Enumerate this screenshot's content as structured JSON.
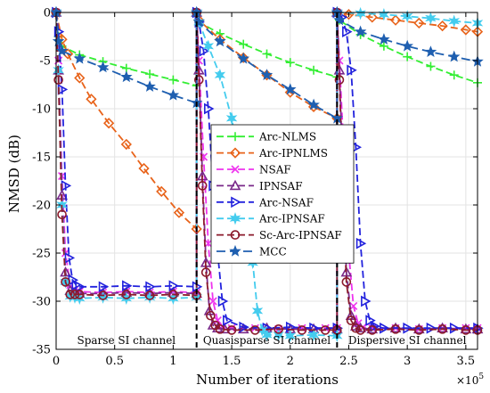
{
  "chart_data": {
    "type": "line",
    "xlabel": "Number of iterations",
    "ylabel": "NMSD (dB)",
    "x_multiplier": "×10",
    "x_multiplier_exponent": "5",
    "xlim": [
      0,
      3.6
    ],
    "ylim": [
      -35,
      0
    ],
    "xticks": [
      0,
      0.5,
      1,
      1.5,
      2,
      2.5,
      3,
      3.5
    ],
    "xtick_labels": [
      "0",
      "0.5",
      "1",
      "1.5",
      "2",
      "2.5",
      "3",
      "3.5"
    ],
    "yticks": [
      0,
      -5,
      -10,
      -15,
      -20,
      -25,
      -30,
      -35
    ],
    "ytick_labels": [
      "0",
      "-5",
      "-10",
      "-15",
      "-20",
      "-25",
      "-30",
      "-35"
    ],
    "grid": true,
    "legend_position": "center-right",
    "change_points": [
      1.2,
      2.4
    ],
    "regions": [
      {
        "label": "Sparse SI channel",
        "x": 0.6
      },
      {
        "label": "Quasisparse SI channel",
        "x": 1.8
      },
      {
        "label": "Dispersive  SI channel",
        "x": 3.0
      }
    ],
    "series": [
      {
        "name": "Arc-NLMS",
        "color": "#33ee33",
        "marker": "plus",
        "dash": "8,4",
        "x": [
          0,
          0.02,
          0.05,
          0.2,
          0.4,
          0.6,
          0.8,
          1.0,
          1.2,
          1.2,
          1.22,
          1.4,
          1.6,
          1.8,
          2.0,
          2.2,
          2.4,
          2.4,
          2.42,
          2.6,
          2.8,
          3.0,
          3.2,
          3.4,
          3.6
        ],
        "y": [
          0,
          -2.5,
          -3.5,
          -4.4,
          -5.1,
          -5.8,
          -6.4,
          -7.0,
          -7.6,
          0,
          -1.0,
          -2.2,
          -3.3,
          -4.3,
          -5.2,
          -6.0,
          -6.7,
          0,
          -0.8,
          -2.3,
          -3.5,
          -4.6,
          -5.6,
          -6.5,
          -7.3
        ]
      },
      {
        "name": "Arc-IPNLMS",
        "color": "#e8631a",
        "marker": "diamond",
        "dash": "8,4",
        "x": [
          0,
          0.05,
          0.1,
          0.2,
          0.3,
          0.45,
          0.6,
          0.75,
          0.9,
          1.05,
          1.2,
          1.2,
          1.22,
          1.4,
          1.6,
          1.8,
          2.0,
          2.2,
          2.4,
          2.4,
          2.5,
          2.7,
          2.9,
          3.1,
          3.3,
          3.5,
          3.6
        ],
        "y": [
          0,
          -2.8,
          -4.3,
          -6.8,
          -9.0,
          -11.5,
          -13.7,
          -16.2,
          -18.6,
          -20.8,
          -22.5,
          0,
          -0.8,
          -2.8,
          -4.7,
          -6.5,
          -8.3,
          -9.8,
          -11.0,
          0,
          -0.2,
          -0.5,
          -0.8,
          -1.1,
          -1.4,
          -1.8,
          -2.0
        ]
      },
      {
        "name": "NSAF",
        "color": "#ee33ee",
        "marker": "x",
        "dash": "8,4",
        "x": [
          0,
          0.02,
          0.05,
          0.08,
          0.12,
          0.16,
          0.2,
          0.4,
          0.6,
          0.8,
          1.0,
          1.2,
          1.2,
          1.22,
          1.26,
          1.3,
          1.34,
          1.38,
          1.42,
          1.5,
          1.7,
          1.9,
          2.1,
          2.3,
          2.4,
          2.4,
          2.42,
          2.46,
          2.5,
          2.54,
          2.58,
          2.62,
          2.7,
          2.9,
          3.1,
          3.3,
          3.5,
          3.6
        ],
        "y": [
          0,
          -5.0,
          -17.0,
          -25.0,
          -28.3,
          -28.8,
          -29.0,
          -29.1,
          -29.0,
          -29.1,
          -29.0,
          -29.1,
          0,
          -5.0,
          -15.0,
          -24.0,
          -30.0,
          -32.0,
          -32.6,
          -32.8,
          -32.8,
          -32.9,
          -32.8,
          -32.8,
          -32.8,
          0,
          -5.0,
          -15.0,
          -25.0,
          -30.5,
          -32.3,
          -32.7,
          -32.8,
          -32.8,
          -32.9,
          -32.8,
          -32.8,
          -32.8
        ]
      },
      {
        "name": "IPNSAF",
        "color": "#7a2a8a",
        "marker": "triangle",
        "dash": "8,4",
        "x": [
          0,
          0.02,
          0.05,
          0.08,
          0.12,
          0.16,
          0.2,
          0.4,
          0.6,
          0.8,
          1.0,
          1.2,
          1.2,
          1.22,
          1.25,
          1.28,
          1.31,
          1.34,
          1.38,
          1.44,
          1.6,
          1.8,
          2.0,
          2.2,
          2.4,
          2.4,
          2.42,
          2.45,
          2.48,
          2.52,
          2.56,
          2.6,
          2.7,
          2.9,
          3.1,
          3.3,
          3.5,
          3.6
        ],
        "y": [
          0,
          -6.0,
          -19.0,
          -27.0,
          -28.9,
          -29.1,
          -29.2,
          -29.2,
          -29.1,
          -29.2,
          -29.1,
          -29.2,
          0,
          -6.0,
          -17.0,
          -26.0,
          -31.0,
          -32.5,
          -32.8,
          -32.9,
          -32.9,
          -32.8,
          -32.9,
          -32.9,
          -32.9,
          0,
          -6.0,
          -17.0,
          -27.0,
          -31.5,
          -32.6,
          -32.8,
          -32.9,
          -32.8,
          -32.9,
          -32.8,
          -32.9,
          -32.9
        ]
      },
      {
        "name": "Arc-NSAF",
        "color": "#2222dd",
        "marker": "triangle-right",
        "dash": "8,4",
        "x": [
          0,
          0.02,
          0.05,
          0.08,
          0.11,
          0.14,
          0.17,
          0.2,
          0.4,
          0.6,
          0.8,
          1.0,
          1.2,
          1.2,
          1.22,
          1.26,
          1.3,
          1.34,
          1.38,
          1.42,
          1.46,
          1.6,
          1.8,
          2.0,
          2.2,
          2.4,
          2.4,
          2.44,
          2.48,
          2.52,
          2.56,
          2.6,
          2.64,
          2.68,
          2.72,
          2.8,
          3.0,
          3.2,
          3.4,
          3.6
        ],
        "y": [
          0,
          -2.0,
          -8.0,
          -18.0,
          -25.5,
          -27.8,
          -28.3,
          -28.5,
          -28.5,
          -28.4,
          -28.5,
          -28.4,
          -28.5,
          0,
          -1.0,
          -4.0,
          -10.0,
          -18.0,
          -25.0,
          -30.0,
          -32.0,
          -32.7,
          -32.8,
          -32.7,
          -32.8,
          -32.8,
          0,
          -0.5,
          -2.0,
          -6.0,
          -14.0,
          -24.0,
          -30.0,
          -32.0,
          -32.6,
          -32.8,
          -32.8,
          -32.8,
          -32.8,
          -32.8
        ]
      },
      {
        "name": "Arc-IPNSAF",
        "color": "#44ccee",
        "marker": "star6",
        "dash": "8,4",
        "x": [
          0,
          0.02,
          0.05,
          0.08,
          0.12,
          0.16,
          0.2,
          0.4,
          0.6,
          0.8,
          1.0,
          1.2,
          1.2,
          1.22,
          1.3,
          1.4,
          1.5,
          1.6,
          1.68,
          1.72,
          1.76,
          1.8,
          1.9,
          2.0,
          2.2,
          2.4,
          2.4,
          2.6,
          2.8,
          3.0,
          3.2,
          3.4,
          3.6
        ],
        "y": [
          0,
          -6.0,
          -20.0,
          -28.0,
          -29.5,
          -29.6,
          -29.7,
          -29.6,
          -29.7,
          -29.6,
          -29.7,
          -29.6,
          0,
          -1.0,
          -3.5,
          -6.5,
          -11.0,
          -18.0,
          -26.0,
          -31.0,
          -33.0,
          -33.5,
          -33.5,
          -33.6,
          -33.5,
          -33.6,
          0,
          -0.1,
          -0.2,
          -0.4,
          -0.6,
          -0.9,
          -1.1
        ]
      },
      {
        "name": "Sc-Arc-IPNSAF",
        "color": "#8b1a2b",
        "marker": "circle",
        "dash": "8,4",
        "x": [
          0,
          0.02,
          0.05,
          0.08,
          0.12,
          0.16,
          0.2,
          0.4,
          0.6,
          0.8,
          1.0,
          1.2,
          1.2,
          1.22,
          1.25,
          1.28,
          1.32,
          1.36,
          1.4,
          1.5,
          1.7,
          1.9,
          2.1,
          2.3,
          2.4,
          2.4,
          2.42,
          2.45,
          2.48,
          2.52,
          2.56,
          2.6,
          2.7,
          2.9,
          3.1,
          3.3,
          3.5,
          3.6
        ],
        "y": [
          0,
          -7.0,
          -21.0,
          -28.0,
          -29.3,
          -29.3,
          -29.3,
          -29.4,
          -29.3,
          -29.4,
          -29.3,
          -29.4,
          0,
          -7.0,
          -18.0,
          -27.0,
          -31.5,
          -32.5,
          -32.9,
          -33.0,
          -33.0,
          -32.9,
          -33.0,
          -33.0,
          -33.0,
          0,
          -7.0,
          -18.0,
          -28.0,
          -32.0,
          -32.8,
          -33.0,
          -33.0,
          -32.9,
          -33.0,
          -32.9,
          -33.0,
          -33.0
        ]
      },
      {
        "name": "MCC",
        "color": "#1f5fb0",
        "marker": "star",
        "dash": "10,5",
        "x": [
          0,
          0.02,
          0.05,
          0.2,
          0.4,
          0.6,
          0.8,
          1.0,
          1.2,
          1.2,
          1.22,
          1.4,
          1.6,
          1.8,
          2.0,
          2.2,
          2.4,
          2.4,
          2.42,
          2.6,
          2.8,
          3.0,
          3.2,
          3.4,
          3.6
        ],
        "y": [
          0,
          -3.0,
          -4.0,
          -4.8,
          -5.7,
          -6.7,
          -7.7,
          -8.6,
          -9.4,
          0,
          -1.0,
          -3.0,
          -4.8,
          -6.5,
          -8.0,
          -9.6,
          -11.0,
          0,
          -0.8,
          -2.0,
          -2.8,
          -3.5,
          -4.1,
          -4.6,
          -5.1
        ]
      }
    ]
  }
}
